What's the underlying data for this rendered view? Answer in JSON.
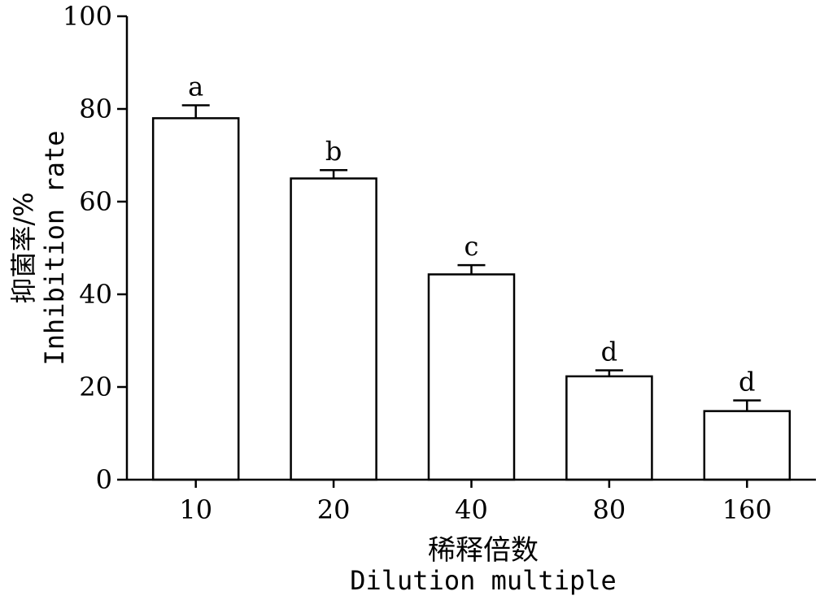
{
  "chart_data": {
    "type": "bar",
    "categories": [
      "10",
      "20",
      "40",
      "80",
      "160"
    ],
    "values": [
      78,
      65,
      44.3,
      22.3,
      14.8
    ],
    "errors": [
      2.8,
      1.8,
      2.0,
      1.3,
      2.3
    ],
    "significance": [
      "a",
      "b",
      "c",
      "d",
      "d"
    ],
    "xlabel_zh": "稀释倍数",
    "xlabel": "Dilution multiple",
    "ylabel_zh": "抑菌率/%",
    "ylabel": "Inhibition rate",
    "ylim": [
      0,
      100
    ],
    "yticks": [
      0,
      20,
      40,
      60,
      80,
      100
    ],
    "grid": false,
    "bar_fill": "#ffffff",
    "bar_stroke": "#000000"
  }
}
